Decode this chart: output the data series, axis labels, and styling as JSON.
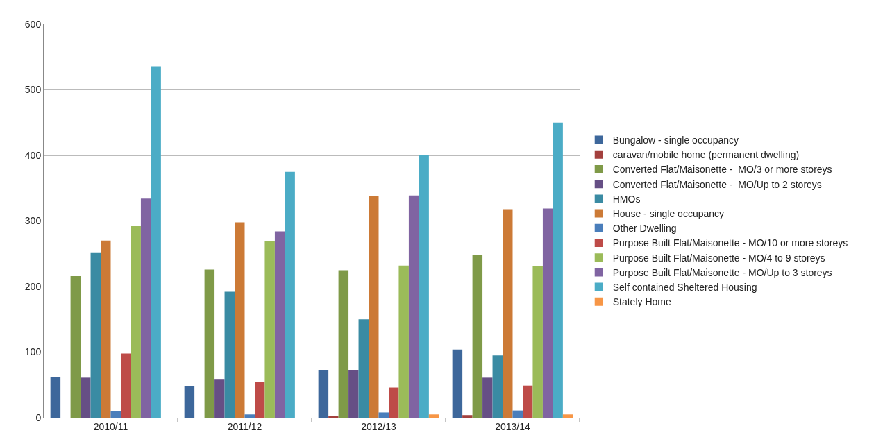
{
  "chart_data": {
    "type": "bar",
    "categories": [
      "2010/11",
      "2011/12",
      "2012/13",
      "2013/14"
    ],
    "series": [
      {
        "name": "Bungalow - single occupancy",
        "color": "#3d679b",
        "values": [
          62,
          48,
          73,
          104
        ]
      },
      {
        "name": "caravan/mobile home (permanent dwelling)",
        "color": "#a3403d",
        "values": [
          0,
          0,
          2,
          4
        ]
      },
      {
        "name": "Converted Flat/Maisonette -  MO/3 or more storeys",
        "color": "#7f9a48",
        "values": [
          216,
          226,
          225,
          248
        ]
      },
      {
        "name": "Converted Flat/Maisonette -  MO/Up to 2 storeys",
        "color": "#664f85",
        "values": [
          61,
          58,
          72,
          61
        ]
      },
      {
        "name": "HMOs",
        "color": "#3a8ba3",
        "values": [
          252,
          192,
          150,
          95
        ]
      },
      {
        "name": "House - single occupancy",
        "color": "#cc7a36",
        "values": [
          270,
          298,
          338,
          318
        ]
      },
      {
        "name": "Other Dwelling",
        "color": "#4a7ebb",
        "values": [
          10,
          5,
          8,
          11
        ]
      },
      {
        "name": "Purpose Built Flat/Maisonette - MO/10 or more storeys",
        "color": "#be4b48",
        "values": [
          98,
          55,
          46,
          49
        ]
      },
      {
        "name": "Purpose Built Flat/Maisonette - MO/4 to 9 storeys",
        "color": "#9bbb59",
        "values": [
          292,
          269,
          232,
          231
        ]
      },
      {
        "name": "Purpose Built Flat/Maisonette - MO/Up to 3 storeys",
        "color": "#8064a2",
        "values": [
          334,
          284,
          339,
          319
        ]
      },
      {
        "name": "Self contained Sheltered Housing",
        "color": "#4bacc6",
        "values": [
          536,
          375,
          401,
          450
        ]
      },
      {
        "name": "Stately Home",
        "color": "#f79646",
        "values": [
          0,
          0,
          5,
          5
        ]
      }
    ],
    "ylim": [
      0,
      600
    ],
    "yticks": [
      0,
      100,
      200,
      300,
      400,
      500,
      600
    ],
    "grid": "y",
    "legend": "right"
  }
}
